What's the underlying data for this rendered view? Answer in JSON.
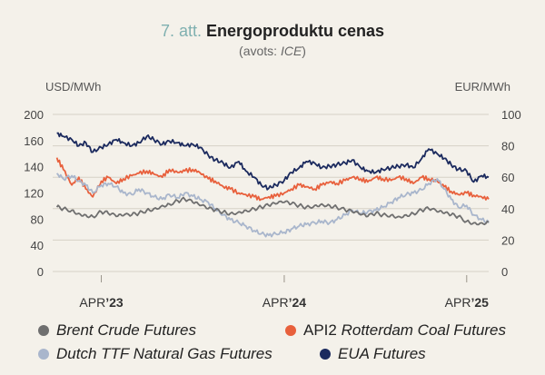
{
  "figure": {
    "number": "7. att.",
    "title": "Energoproduktu cenas",
    "subtitle_pre": "(avots: ",
    "subtitle_source": "ICE",
    "subtitle_post": ")"
  },
  "chart_data": {
    "type": "line",
    "y_left_label": "USD/MWh",
    "y_right_label": "EUR/MWh",
    "y_left_ticks": [
      "200",
      "160",
      "140",
      "120",
      "80",
      "40",
      "0"
    ],
    "y_right_ticks": [
      "100",
      "80",
      "60",
      "40",
      "20",
      "0"
    ],
    "y_left_range": [
      0,
      200
    ],
    "y_right_range": [
      0,
      100
    ],
    "x_range": [
      "2023-01-01",
      "2025-05-15"
    ],
    "x_ticks": [
      {
        "date": "2023-04-01",
        "pre": "APR",
        "post": "’23"
      },
      {
        "date": "2024-04-01",
        "pre": "APR",
        "post": "’24"
      },
      {
        "date": "2025-04-01",
        "pre": "APR",
        "post": "’25"
      }
    ],
    "grid": true,
    "legend_position": "bottom",
    "series": [
      {
        "name": "EUA Futures",
        "axis": "right",
        "color": "#1b2a5e",
        "points": [
          [
            "2023-01-02",
            88
          ],
          [
            "2023-01-15",
            86
          ],
          [
            "2023-02-01",
            84
          ],
          [
            "2023-02-15",
            80
          ],
          [
            "2023-03-01",
            82
          ],
          [
            "2023-03-15",
            76
          ],
          [
            "2023-04-01",
            79
          ],
          [
            "2023-04-15",
            81
          ],
          [
            "2023-05-01",
            84
          ],
          [
            "2023-05-15",
            82
          ],
          [
            "2023-06-01",
            80
          ],
          [
            "2023-06-15",
            82
          ],
          [
            "2023-07-01",
            86
          ],
          [
            "2023-07-15",
            84
          ],
          [
            "2023-08-01",
            81
          ],
          [
            "2023-08-15",
            83
          ],
          [
            "2023-09-01",
            82
          ],
          [
            "2023-09-15",
            80
          ],
          [
            "2023-10-01",
            81
          ],
          [
            "2023-10-15",
            79
          ],
          [
            "2023-11-01",
            74
          ],
          [
            "2023-11-15",
            71
          ],
          [
            "2023-12-01",
            69
          ],
          [
            "2023-12-15",
            66
          ],
          [
            "2024-01-01",
            70
          ],
          [
            "2024-01-15",
            64
          ],
          [
            "2024-02-01",
            60
          ],
          [
            "2024-02-15",
            55
          ],
          [
            "2024-03-01",
            53
          ],
          [
            "2024-03-15",
            55
          ],
          [
            "2024-04-01",
            58
          ],
          [
            "2024-04-15",
            63
          ],
          [
            "2024-05-01",
            66
          ],
          [
            "2024-05-15",
            70
          ],
          [
            "2024-06-01",
            69
          ],
          [
            "2024-06-15",
            66
          ],
          [
            "2024-07-01",
            67
          ],
          [
            "2024-07-15",
            68
          ],
          [
            "2024-08-01",
            69
          ],
          [
            "2024-08-15",
            71
          ],
          [
            "2024-09-01",
            66
          ],
          [
            "2024-09-15",
            64
          ],
          [
            "2024-10-01",
            63
          ],
          [
            "2024-10-15",
            65
          ],
          [
            "2024-11-01",
            66
          ],
          [
            "2024-11-15",
            67
          ],
          [
            "2024-12-01",
            68
          ],
          [
            "2024-12-15",
            66
          ],
          [
            "2025-01-01",
            72
          ],
          [
            "2025-01-15",
            78
          ],
          [
            "2025-02-01",
            75
          ],
          [
            "2025-02-15",
            72
          ],
          [
            "2025-03-01",
            68
          ],
          [
            "2025-03-15",
            65
          ],
          [
            "2025-04-01",
            64
          ],
          [
            "2025-04-15",
            57
          ],
          [
            "2025-05-01",
            61
          ],
          [
            "2025-05-15",
            60
          ]
        ]
      },
      {
        "name": "API2 Rotterdam Coal Futures",
        "name_pre": "API2",
        "name_post": " Rotterdam Coal Futures",
        "axis": "left",
        "color": "#e8603c",
        "points": [
          [
            "2023-01-02",
            145
          ],
          [
            "2023-01-15",
            130
          ],
          [
            "2023-02-01",
            110
          ],
          [
            "2023-02-15",
            120
          ],
          [
            "2023-03-01",
            105
          ],
          [
            "2023-03-15",
            95
          ],
          [
            "2023-04-01",
            115
          ],
          [
            "2023-04-15",
            120
          ],
          [
            "2023-05-01",
            112
          ],
          [
            "2023-05-15",
            118
          ],
          [
            "2023-06-01",
            122
          ],
          [
            "2023-06-15",
            125
          ],
          [
            "2023-07-01",
            128
          ],
          [
            "2023-07-15",
            124
          ],
          [
            "2023-08-01",
            120
          ],
          [
            "2023-08-15",
            130
          ],
          [
            "2023-09-01",
            126
          ],
          [
            "2023-09-15",
            128
          ],
          [
            "2023-10-01",
            130
          ],
          [
            "2023-10-15",
            126
          ],
          [
            "2023-11-01",
            118
          ],
          [
            "2023-11-15",
            115
          ],
          [
            "2023-12-01",
            108
          ],
          [
            "2023-12-15",
            105
          ],
          [
            "2024-01-01",
            100
          ],
          [
            "2024-01-15",
            98
          ],
          [
            "2024-02-01",
            95
          ],
          [
            "2024-02-15",
            92
          ],
          [
            "2024-03-01",
            95
          ],
          [
            "2024-03-15",
            96
          ],
          [
            "2024-04-01",
            100
          ],
          [
            "2024-04-15",
            105
          ],
          [
            "2024-05-01",
            110
          ],
          [
            "2024-05-15",
            108
          ],
          [
            "2024-06-01",
            105
          ],
          [
            "2024-06-15",
            110
          ],
          [
            "2024-07-01",
            114
          ],
          [
            "2024-07-15",
            112
          ],
          [
            "2024-08-01",
            116
          ],
          [
            "2024-08-15",
            120
          ],
          [
            "2024-09-01",
            118
          ],
          [
            "2024-09-15",
            114
          ],
          [
            "2024-10-01",
            120
          ],
          [
            "2024-10-15",
            118
          ],
          [
            "2024-11-01",
            116
          ],
          [
            "2024-11-15",
            120
          ],
          [
            "2024-12-01",
            118
          ],
          [
            "2024-12-15",
            112
          ],
          [
            "2025-01-01",
            120
          ],
          [
            "2025-01-15",
            118
          ],
          [
            "2025-02-01",
            115
          ],
          [
            "2025-02-15",
            108
          ],
          [
            "2025-03-01",
            102
          ],
          [
            "2025-03-15",
            98
          ],
          [
            "2025-04-01",
            100
          ],
          [
            "2025-04-15",
            97
          ],
          [
            "2025-05-01",
            95
          ],
          [
            "2025-05-15",
            92
          ]
        ]
      },
      {
        "name": "Dutch TTF Natural Gas Futures",
        "axis": "left",
        "color": "#a9b6cc",
        "points": [
          [
            "2023-01-02",
            125
          ],
          [
            "2023-01-15",
            118
          ],
          [
            "2023-02-01",
            122
          ],
          [
            "2023-02-15",
            115
          ],
          [
            "2023-03-01",
            110
          ],
          [
            "2023-03-15",
            100
          ],
          [
            "2023-04-01",
            110
          ],
          [
            "2023-04-15",
            112
          ],
          [
            "2023-05-01",
            108
          ],
          [
            "2023-05-15",
            100
          ],
          [
            "2023-06-01",
            98
          ],
          [
            "2023-06-15",
            105
          ],
          [
            "2023-07-01",
            100
          ],
          [
            "2023-07-15",
            95
          ],
          [
            "2023-08-01",
            92
          ],
          [
            "2023-08-15",
            98
          ],
          [
            "2023-09-01",
            94
          ],
          [
            "2023-09-15",
            100
          ],
          [
            "2023-10-01",
            96
          ],
          [
            "2023-10-15",
            92
          ],
          [
            "2023-11-01",
            88
          ],
          [
            "2023-11-15",
            80
          ],
          [
            "2023-12-01",
            72
          ],
          [
            "2023-12-15",
            66
          ],
          [
            "2024-01-01",
            62
          ],
          [
            "2024-01-15",
            58
          ],
          [
            "2024-02-01",
            52
          ],
          [
            "2024-02-15",
            48
          ],
          [
            "2024-03-01",
            46
          ],
          [
            "2024-03-15",
            48
          ],
          [
            "2024-04-01",
            50
          ],
          [
            "2024-04-15",
            54
          ],
          [
            "2024-05-01",
            58
          ],
          [
            "2024-05-15",
            60
          ],
          [
            "2024-06-01",
            62
          ],
          [
            "2024-06-15",
            64
          ],
          [
            "2024-07-01",
            62
          ],
          [
            "2024-07-15",
            66
          ],
          [
            "2024-08-01",
            72
          ],
          [
            "2024-08-15",
            78
          ],
          [
            "2024-09-01",
            74
          ],
          [
            "2024-09-15",
            76
          ],
          [
            "2024-10-01",
            78
          ],
          [
            "2024-10-15",
            82
          ],
          [
            "2024-11-01",
            88
          ],
          [
            "2024-11-15",
            94
          ],
          [
            "2024-12-01",
            98
          ],
          [
            "2024-12-15",
            100
          ],
          [
            "2025-01-01",
            104
          ],
          [
            "2025-01-15",
            112
          ],
          [
            "2025-02-01",
            118
          ],
          [
            "2025-02-15",
            105
          ],
          [
            "2025-03-01",
            92
          ],
          [
            "2025-03-15",
            82
          ],
          [
            "2025-04-01",
            84
          ],
          [
            "2025-04-15",
            72
          ],
          [
            "2025-05-01",
            66
          ],
          [
            "2025-05-15",
            62
          ]
        ]
      },
      {
        "name": "Brent Crude Futures",
        "axis": "left",
        "color": "#6f6f6f",
        "points": [
          [
            "2023-01-02",
            82
          ],
          [
            "2023-01-15",
            80
          ],
          [
            "2023-02-01",
            78
          ],
          [
            "2023-02-15",
            74
          ],
          [
            "2023-03-01",
            72
          ],
          [
            "2023-03-15",
            70
          ],
          [
            "2023-04-01",
            76
          ],
          [
            "2023-04-15",
            74
          ],
          [
            "2023-05-01",
            70
          ],
          [
            "2023-05-15",
            71
          ],
          [
            "2023-06-01",
            72
          ],
          [
            "2023-06-15",
            74
          ],
          [
            "2023-07-01",
            78
          ],
          [
            "2023-07-15",
            80
          ],
          [
            "2023-08-01",
            84
          ],
          [
            "2023-08-15",
            86
          ],
          [
            "2023-09-01",
            90
          ],
          [
            "2023-09-15",
            92
          ],
          [
            "2023-10-01",
            88
          ],
          [
            "2023-10-15",
            84
          ],
          [
            "2023-11-01",
            80
          ],
          [
            "2023-11-15",
            78
          ],
          [
            "2023-12-01",
            76
          ],
          [
            "2023-12-15",
            74
          ],
          [
            "2024-01-01",
            76
          ],
          [
            "2024-01-15",
            78
          ],
          [
            "2024-02-01",
            80
          ],
          [
            "2024-02-15",
            82
          ],
          [
            "2024-03-01",
            84
          ],
          [
            "2024-03-15",
            86
          ],
          [
            "2024-04-01",
            88
          ],
          [
            "2024-04-15",
            86
          ],
          [
            "2024-05-01",
            84
          ],
          [
            "2024-05-15",
            82
          ],
          [
            "2024-06-01",
            84
          ],
          [
            "2024-06-15",
            86
          ],
          [
            "2024-07-01",
            84
          ],
          [
            "2024-07-15",
            82
          ],
          [
            "2024-08-01",
            78
          ],
          [
            "2024-08-15",
            76
          ],
          [
            "2024-09-01",
            72
          ],
          [
            "2024-09-15",
            70
          ],
          [
            "2024-10-01",
            74
          ],
          [
            "2024-10-15",
            72
          ],
          [
            "2024-11-01",
            72
          ],
          [
            "2024-11-15",
            70
          ],
          [
            "2024-12-01",
            72
          ],
          [
            "2024-12-15",
            74
          ],
          [
            "2025-01-01",
            78
          ],
          [
            "2025-01-15",
            80
          ],
          [
            "2025-02-01",
            76
          ],
          [
            "2025-02-15",
            74
          ],
          [
            "2025-03-01",
            72
          ],
          [
            "2025-03-15",
            70
          ],
          [
            "2025-04-01",
            64
          ],
          [
            "2025-04-15",
            62
          ],
          [
            "2025-05-01",
            62
          ],
          [
            "2025-05-15",
            63
          ]
        ]
      }
    ]
  },
  "legend": [
    {
      "key": "brent",
      "label": "Brent Crude Futures",
      "color": "#6f6f6f"
    },
    {
      "key": "coal",
      "label_pre": "API2",
      "label_post": " Rotterdam Coal Futures",
      "color": "#e8603c"
    },
    {
      "key": "ttf",
      "label": "Dutch TTF Natural Gas Futures",
      "color": "#a9b6cc"
    },
    {
      "key": "eua",
      "label": "EUA Futures",
      "color": "#1b2a5e"
    }
  ]
}
